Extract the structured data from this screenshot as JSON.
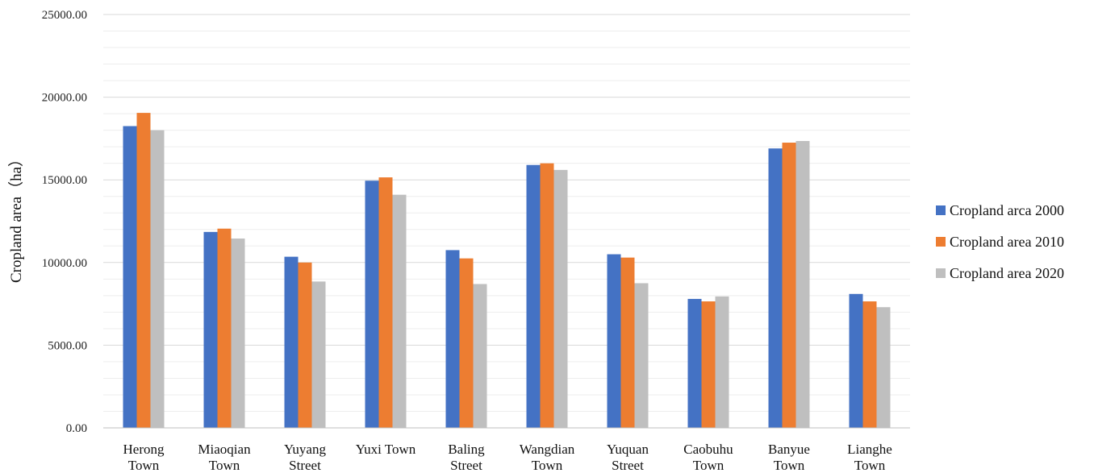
{
  "chart_data": {
    "type": "bar",
    "ylabel": "Cropland area（ha）",
    "ylim": [
      0,
      25000
    ],
    "yticks": [
      "0.00",
      "5000.00",
      "10000.00",
      "15000.00",
      "20000.00",
      "25000.00"
    ],
    "grid": true,
    "legend_position": "right",
    "categories": [
      [
        "Herong",
        "Town"
      ],
      [
        "Miaoqian",
        "Town"
      ],
      [
        "Yuyang",
        "Street"
      ],
      [
        "Yuxi Town"
      ],
      [
        "Baling",
        "Street"
      ],
      [
        "Wangdian",
        "Town"
      ],
      [
        "Yuquan",
        "Street"
      ],
      [
        "Caobuhu",
        "Town"
      ],
      [
        "Banyue",
        "Town"
      ],
      [
        "Lianghe",
        "Town"
      ]
    ],
    "series": [
      {
        "name": "Cropland arca 2000",
        "color": "#4472c4",
        "values": [
          18250,
          11850,
          10350,
          14950,
          10750,
          15900,
          10500,
          7800,
          16900,
          8100
        ]
      },
      {
        "name": "Cropland area 2010",
        "color": "#ed7d31",
        "values": [
          19050,
          12050,
          10000,
          15150,
          10250,
          16000,
          10300,
          7650,
          17250,
          7650
        ]
      },
      {
        "name": "Cropland area 2020",
        "color": "#bfbfbf",
        "values": [
          18000,
          11450,
          8850,
          14100,
          8700,
          15600,
          8750,
          7950,
          17350,
          7300
        ]
      }
    ]
  }
}
